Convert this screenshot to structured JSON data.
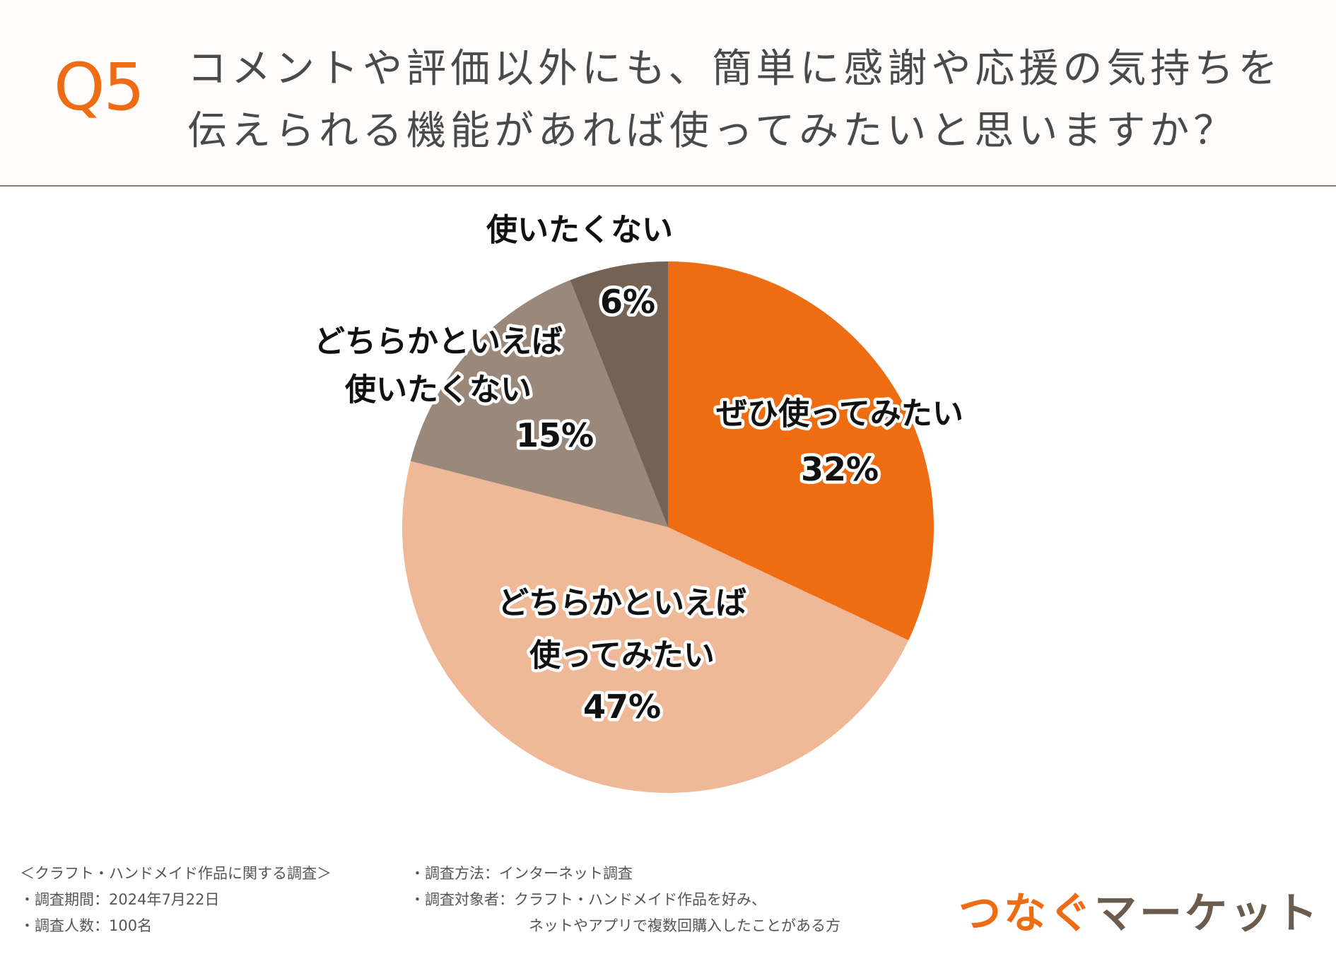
{
  "question": {
    "label": "Q5",
    "line1": "コメントや評価以外にも、簡単に感謝や応援の気持ちを",
    "line2": "伝えられる機能があれば使ってみたいと思いますか？"
  },
  "chart_data": {
    "type": "pie",
    "start_angle_deg": 0,
    "direction": "clockwise",
    "slices": [
      {
        "label_lines": [
          "ぜひ使ってみたい"
        ],
        "value": 32,
        "value_label": "32%",
        "color": "#ee6c12"
      },
      {
        "label_lines": [
          "どちらかといえば",
          "使ってみたい"
        ],
        "value": 47,
        "value_label": "47%",
        "color": "#efb896"
      },
      {
        "label_lines": [
          "どちらかといえば",
          "使いたくない"
        ],
        "value": 15,
        "value_label": "15%",
        "color": "#9a887a"
      },
      {
        "label_lines": [
          "使いたくない"
        ],
        "value": 6,
        "value_label": "6%",
        "color": "#746355"
      }
    ]
  },
  "footer": {
    "survey_title": "＜クラフト・ハンドメイド作品に関する調査＞",
    "period": "・調査期間：2024年7月22日",
    "respondents": "・調査人数：100名",
    "method": "・調査方法：インターネット調査",
    "target_line1": "・調査対象者：クラフト・ハンドメイド作品を好み、",
    "target_line2": "ネットやアプリで複数回購入したことがある方"
  },
  "logo": {
    "part1": "つなぐ",
    "part2": "マーケット"
  }
}
